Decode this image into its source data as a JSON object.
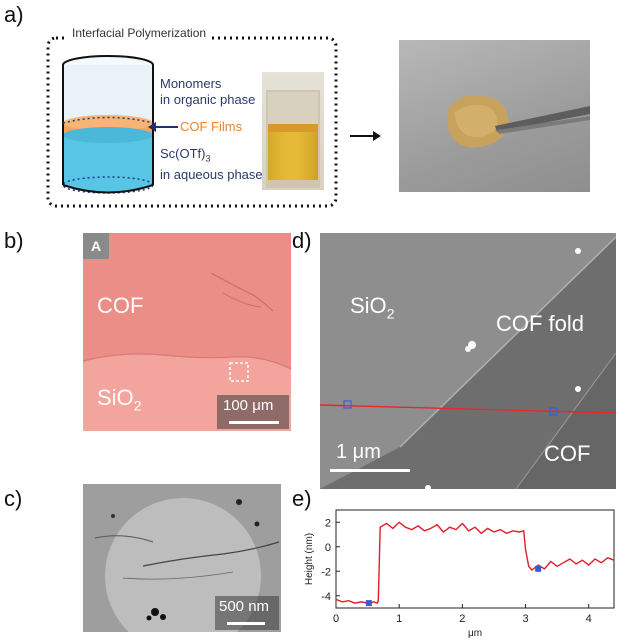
{
  "panels": {
    "a": {
      "label": "a)",
      "title": "Interfacial Polymerization",
      "monomers_line1": "Monomers",
      "monomers_line2": "in organic phase",
      "cof_films": "COF Films",
      "sc_line1": "Sc(OTf)",
      "sc_sub": "3",
      "sc_line2": "in aqueous phase",
      "colors": {
        "organic": "#e9f2f6",
        "film": "#f6a25a",
        "aqueous": "#57c5e3",
        "arrow": "#24306b",
        "text_navy": "#2b3a6b",
        "text_orange": "#e8842e"
      }
    },
    "b": {
      "label": "b)",
      "corner_tag": "A",
      "cof": "COF",
      "sio2": "SiO",
      "sio2_sub": "2",
      "scale": "100 μm",
      "colors": {
        "cof": "#ec8e88",
        "sio2": "#f3a49c"
      }
    },
    "c": {
      "label": "c)",
      "scale": "500 nm"
    },
    "d": {
      "label": "d)",
      "sio2": "SiO",
      "sio2_sub": "2",
      "cof_fold": "COF fold",
      "cof": "COF",
      "scale": "1 μm",
      "colors": {
        "line": "#e8262e"
      }
    },
    "e": {
      "label": "e)",
      "ylabel": "Height (nm)",
      "xlabel": "μm"
    }
  },
  "chart_data": {
    "type": "line",
    "title": "",
    "xlabel": "μm",
    "ylabel": "Height (nm)",
    "xlim": [
      0,
      4.4
    ],
    "ylim": [
      -5,
      3
    ],
    "xticks": [
      "0",
      "1",
      "2",
      "3",
      "4"
    ],
    "yticks": [
      "2",
      "0",
      "-2",
      "-4"
    ],
    "grid": false,
    "series": [
      {
        "color": "#e01e2a",
        "x": [
          0,
          0.1,
          0.2,
          0.3,
          0.4,
          0.5,
          0.6,
          0.65,
          0.67,
          0.7,
          0.8,
          0.9,
          1.0,
          1.1,
          1.2,
          1.3,
          1.4,
          1.5,
          1.6,
          1.7,
          1.8,
          1.9,
          2.0,
          2.1,
          2.2,
          2.3,
          2.4,
          2.5,
          2.6,
          2.7,
          2.8,
          2.9,
          2.97,
          3.0,
          3.05,
          3.1,
          3.2,
          3.3,
          3.4,
          3.5,
          3.6,
          3.7,
          3.8,
          3.9,
          4.0,
          4.1,
          4.2,
          4.3,
          4.4
        ],
        "y": [
          -4.3,
          -4.5,
          -4.4,
          -4.6,
          -4.5,
          -4.6,
          -4.5,
          -4.6,
          -4.4,
          1.6,
          1.9,
          1.5,
          2.0,
          1.6,
          1.4,
          1.7,
          1.3,
          1.5,
          1.8,
          1.2,
          1.6,
          1.4,
          1.9,
          1.3,
          1.6,
          1.1,
          1.5,
          1.2,
          1.4,
          1.1,
          1.3,
          1.2,
          1.3,
          -0.2,
          -1.6,
          -1.9,
          -1.5,
          -1.8,
          -1.2,
          -1.6,
          -1.3,
          -1.0,
          -1.4,
          -1.1,
          -1.5,
          -1.0,
          -1.3,
          -0.9,
          -1.1
        ]
      }
    ],
    "markers": [
      {
        "x": 0.52,
        "y": -4.6,
        "color": "#3b5bd6"
      },
      {
        "x": 3.2,
        "y": -1.8,
        "color": "#3b5bd6"
      }
    ]
  }
}
